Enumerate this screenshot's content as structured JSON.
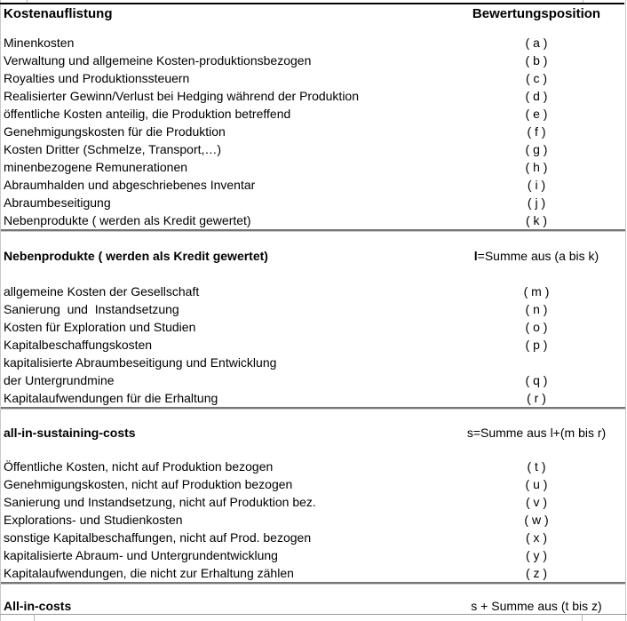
{
  "header": {
    "cost_list": "Kostenauflistung",
    "valuation_position": "Bewertungsposition"
  },
  "sections": [
    {
      "rows": [
        {
          "label": "Minenkosten",
          "pos": "( a )"
        },
        {
          "label": "Verwaltung und allgemeine Kosten-produktionsbezogen",
          "pos": "( b )"
        },
        {
          "label": "Royalties und Produktionssteuern",
          "pos": "( c )"
        },
        {
          "label": "Realisierter Gewinn/Verlust bei Hedging während der Produktion",
          "pos": "( d )"
        },
        {
          "label": "öffentliche Kosten anteilig, die Produktion betreffend",
          "pos": "( e )"
        },
        {
          "label": "Genehmigungskosten für die Produktion",
          "pos": "( f )"
        },
        {
          "label": "Kosten Dritter (Schmelze, Transport,…)",
          "pos": "( g )"
        },
        {
          "label": "minenbezogene Remunerationen",
          "pos": "( h )"
        },
        {
          "label": "Abraumhalden und abgeschriebenes Inventar",
          "pos": "( i )"
        },
        {
          "label": "Abraumbeseitigung",
          "pos": "( j )"
        },
        {
          "label": "Nebenprodukte ( werden als Kredit gewertet)",
          "pos": "( k )"
        }
      ],
      "summary": {
        "label": "Nebenprodukte ( werden als Kredit gewertet)",
        "value_bold": "l",
        "value_rest": "=Summe aus (a bis k)"
      }
    },
    {
      "rows": [
        {
          "label": "allgemeine Kosten der Gesellschaft",
          "pos": "( m )"
        },
        {
          "label": "Sanierung  und  Instandsetzung",
          "pos": "( n )"
        },
        {
          "label": "Kosten für Exploration und Studien",
          "pos": "( o )"
        },
        {
          "label": "Kapitalbeschaffungskosten",
          "pos": "( p )"
        },
        {
          "label": "kapitalisierte Abraumbeseitigung und Entwicklung",
          "pos": ""
        },
        {
          "label": "der Untergrundmine",
          "pos": "( q )"
        },
        {
          "label": "Kapitalaufwendungen für die Erhaltung",
          "pos": "( r )"
        }
      ],
      "summary": {
        "label": "all-in-sustaining-costs",
        "value_bold": "",
        "value_rest": "s=Summe aus l+(m bis r)"
      }
    },
    {
      "rows": [
        {
          "label": "Öffentliche Kosten, nicht auf Produktion bezogen",
          "pos": "( t )"
        },
        {
          "label": "Genehmigungskosten, nicht auf Produktion bezogen",
          "pos": "( u )"
        },
        {
          "label": "Sanierung und Instandsetzung, nicht auf Produktion bez.",
          "pos": "( v )"
        },
        {
          "label": "Explorations- und Studienkosten",
          "pos": "( w )"
        },
        {
          "label": "sonstige Kapitalbeschaffungen, nicht auf Prod. bezogen",
          "pos": "( x )"
        },
        {
          "label": "kapitalisierte Abraum- und Untergrundentwicklung",
          "pos": "( y )"
        },
        {
          "label": "Kapitalaufwendungen, die nicht zur Erhaltung zählen",
          "pos": "( z )"
        }
      ],
      "summary": {
        "label": "All-in-costs",
        "value_bold": "",
        "value_rest": "s + Summe aus (t bis z)"
      }
    }
  ]
}
